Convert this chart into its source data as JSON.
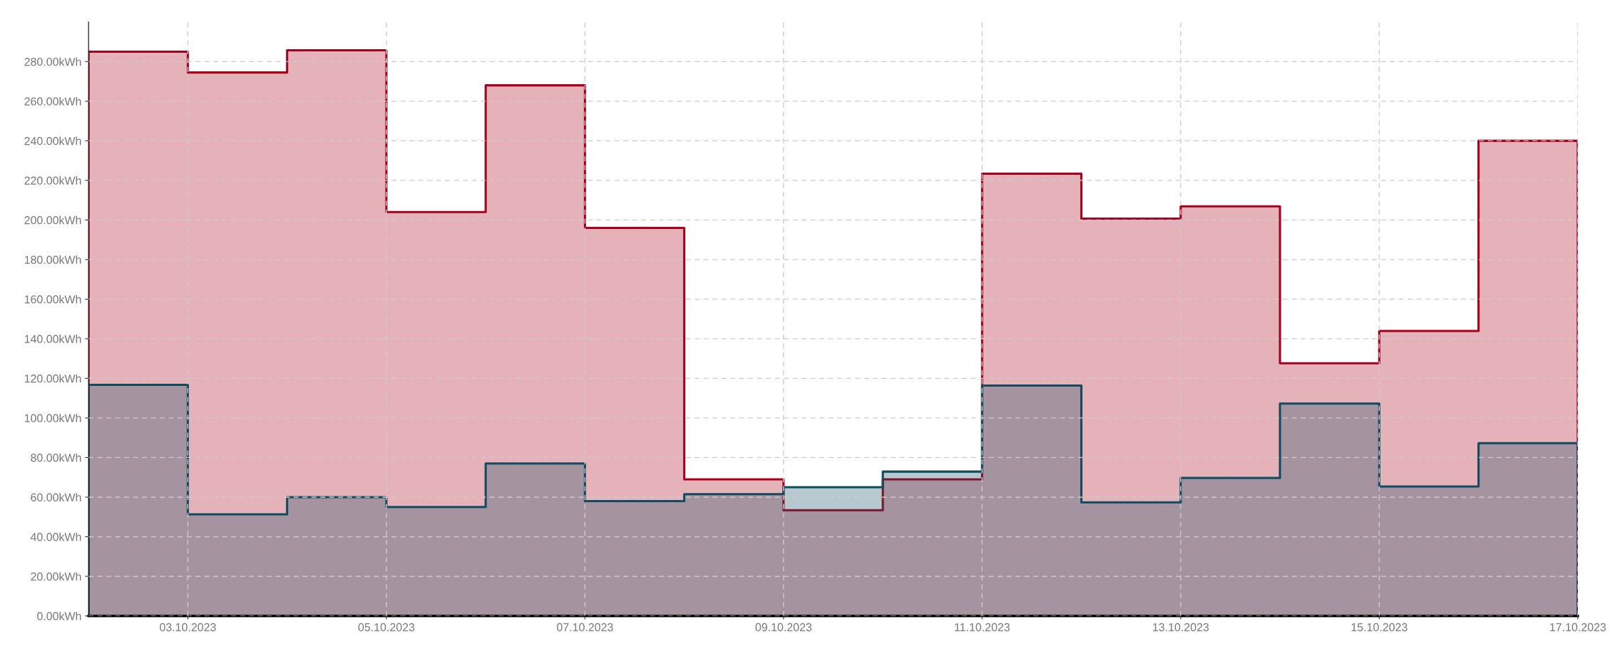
{
  "chart_data": {
    "type": "area",
    "x": [
      "2023-10-02",
      "2023-10-03",
      "2023-10-04",
      "2023-10-05",
      "2023-10-06",
      "2023-10-07",
      "2023-10-08",
      "2023-10-09",
      "2023-10-10",
      "2023-10-11",
      "2023-10-12",
      "2023-10-13",
      "2023-10-14",
      "2023-10-15",
      "2023-10-16",
      "2023-10-17"
    ],
    "series": [
      {
        "color": "#a8001c",
        "values": [
          285,
          274.5,
          285.7,
          204,
          268,
          196,
          69,
          53.4,
          69,
          223.4,
          200.7,
          206.9,
          127.6,
          143.9,
          240,
          240
        ]
      },
      {
        "color": "#114b5f",
        "values": [
          116.7,
          51.3,
          60,
          55,
          77,
          58,
          61.5,
          65,
          72.9,
          116.4,
          57.4,
          69.7,
          107.3,
          65.4,
          87.3,
          87.3
        ]
      }
    ],
    "xlim": [
      "2023-10-02",
      "2023-10-17"
    ],
    "xticks": [
      {
        "value": "2023-10-03",
        "label": "03.10.2023"
      },
      {
        "value": "2023-10-05",
        "label": "05.10.2023"
      },
      {
        "value": "2023-10-07",
        "label": "07.10.2023"
      },
      {
        "value": "2023-10-09",
        "label": "09.10.2023"
      },
      {
        "value": "2023-10-11",
        "label": "11.10.2023"
      },
      {
        "value": "2023-10-13",
        "label": "13.10.2023"
      },
      {
        "value": "2023-10-15",
        "label": "15.10.2023"
      },
      {
        "value": "2023-10-17",
        "label": "17.10.2023"
      }
    ],
    "ylim": [
      0,
      300
    ],
    "yticks": [
      {
        "value": 0,
        "label": "0.00kWh"
      },
      {
        "value": 20,
        "label": "20.00kWh"
      },
      {
        "value": 40,
        "label": "40.00kWh"
      },
      {
        "value": 60,
        "label": "60.00kWh"
      },
      {
        "value": 80,
        "label": "80.00kWh"
      },
      {
        "value": 100,
        "label": "100.00kWh"
      },
      {
        "value": 120,
        "label": "120.00kWh"
      },
      {
        "value": 140,
        "label": "140.00kWh"
      },
      {
        "value": 160,
        "label": "160.00kWh"
      },
      {
        "value": 180,
        "label": "180.00kWh"
      },
      {
        "value": 200,
        "label": "200.00kWh"
      },
      {
        "value": 220,
        "label": "220.00kWh"
      },
      {
        "value": 240,
        "label": "240.00kWh"
      },
      {
        "value": 260,
        "label": "260.00kWh"
      },
      {
        "value": 280,
        "label": "280.00kWh"
      }
    ],
    "grid": true,
    "line_style": "solid"
  }
}
